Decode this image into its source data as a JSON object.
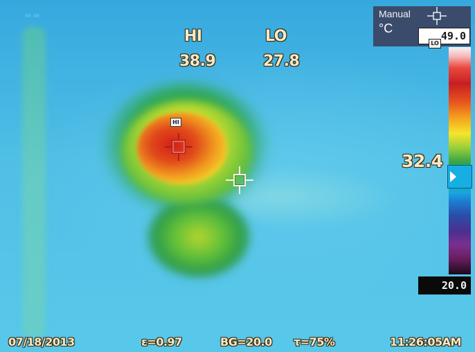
{
  "readouts": {
    "hi_label": "HI",
    "lo_label": "LO",
    "hi_value": "38.9",
    "lo_value": "27.8",
    "center_temp": "32.4"
  },
  "scale": {
    "mode": "Manual",
    "unit": "°C",
    "max": "49.0",
    "min": "20.0",
    "lo_tag": "LO",
    "marker_tag": "HI",
    "marker_level_celsius": 32.4
  },
  "footer": {
    "date": "07/18/2013",
    "emissivity": "ε=0.97",
    "background_temp": "BG=20.0",
    "transmission": "τ=75%",
    "time": "11:26:05AM"
  },
  "icons": {
    "mode_icon": "crosshair-icon",
    "hi_marker": "crosshair-icon",
    "center_marker": "crosshair-icon"
  },
  "colors": {
    "osd_text": "#f5e9c6",
    "scale_panel": "#3a4b6b",
    "crosshair_hi": "#b01d1a",
    "crosshair_center": "#5a8d2c"
  }
}
